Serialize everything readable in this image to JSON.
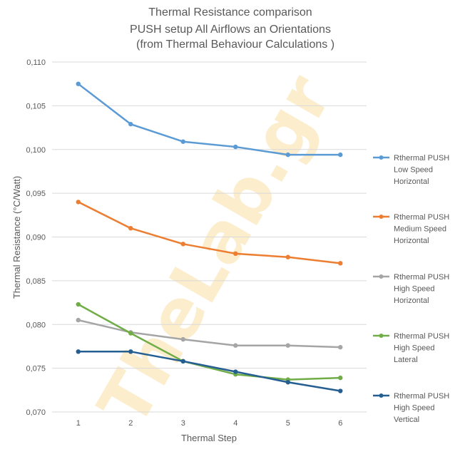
{
  "chart_data": {
    "type": "line",
    "title": [
      "Thermal Resistance comparison",
      "PUSH setup All Airflows an Orientations",
      "(from Thermal Behaviour Calculations )"
    ],
    "xlabel": "Thermal Step",
    "ylabel": "Thermal Resistance (°C/Watt)",
    "categories": [
      "1",
      "2",
      "3",
      "4",
      "5",
      "6"
    ],
    "ylim": [
      0.07,
      0.11
    ],
    "yticks": [
      "0,070",
      "0,075",
      "0,080",
      "0,085",
      "0,090",
      "0,095",
      "0,100",
      "0,105",
      "0,110"
    ],
    "grid": true,
    "legend_position": "right",
    "watermark": "TheLab.gr",
    "series": [
      {
        "name": [
          "Rthermal PUSH",
          "Low Speed",
          "Horizontal"
        ],
        "color": "#5b9bd5",
        "values": [
          0.1075,
          0.1029,
          0.1009,
          0.1003,
          0.0994,
          0.0994
        ]
      },
      {
        "name": [
          "Rthermal PUSH",
          "Medium Speed",
          "Horizontal"
        ],
        "color": "#ed7d31",
        "values": [
          0.094,
          0.091,
          0.0892,
          0.0881,
          0.0877,
          0.087
        ]
      },
      {
        "name": [
          "Rthermal PUSH",
          "High Speed",
          "Horizontal"
        ],
        "color": "#a5a5a5",
        "values": [
          0.0805,
          0.0791,
          0.0783,
          0.0776,
          0.0776,
          0.0774
        ]
      },
      {
        "name": [
          "Rthermal PUSH",
          "High Speed",
          "Lateral"
        ],
        "color": "#70ad47",
        "values": [
          0.0823,
          0.079,
          0.0758,
          0.0743,
          0.0737,
          0.0739
        ]
      },
      {
        "name": [
          "Rthermal PUSH",
          "High Speed",
          "Vertical"
        ],
        "color": "#255e91",
        "values": [
          0.0769,
          0.0769,
          0.0758,
          0.0746,
          0.0734,
          0.0724
        ]
      }
    ]
  }
}
